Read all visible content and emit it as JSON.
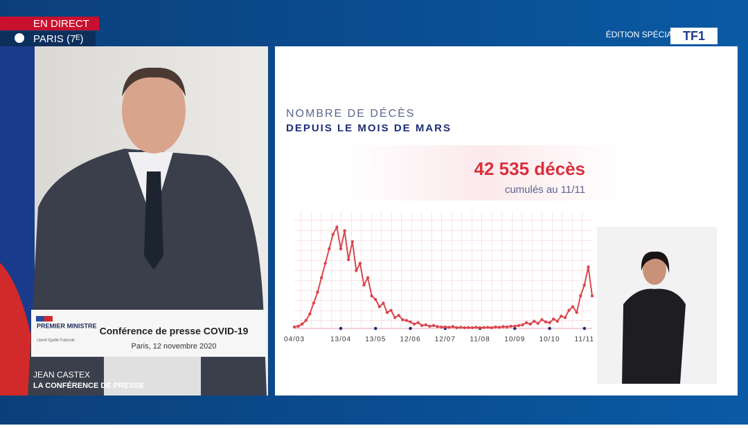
{
  "broadcast": {
    "live": "EN DIRECT",
    "location": "PARIS (7ᴱ)",
    "edition": "ÉDITION SPÉCIALE",
    "channel": "TF1",
    "lectern_org": "PREMIER MINISTRE",
    "lectern_motto": "Liberté Égalité Fraternité",
    "lectern_title": "Conférence de presse COVID-19",
    "lectern_date": "Paris, 12 novembre 2020",
    "speaker": "JEAN CASTEX",
    "program": "LA CONFÉRENCE DE PRESSE"
  },
  "chart_data": {
    "type": "line",
    "title": "NOMBRE DE DÉCÈS",
    "subtitle": "DEPUIS LE MOIS DE MARS",
    "annotations": [
      "42 535 décès",
      "cumulés au 11/11"
    ],
    "color": "#d9474f",
    "categories": [
      "04/03",
      null,
      null,
      null,
      null,
      null,
      null,
      null,
      null,
      null,
      null,
      null,
      "13/04",
      null,
      null,
      null,
      null,
      null,
      null,
      null,
      null,
      "13/05",
      null,
      null,
      null,
      null,
      null,
      null,
      null,
      null,
      "12/06",
      null,
      null,
      null,
      null,
      null,
      null,
      null,
      null,
      "12/07",
      null,
      null,
      null,
      null,
      null,
      null,
      null,
      null,
      "11/08",
      null,
      null,
      null,
      null,
      null,
      null,
      null,
      null,
      "10/09",
      null,
      null,
      null,
      null,
      null,
      null,
      null,
      null,
      "10/10",
      null,
      null,
      null,
      null,
      null,
      null,
      null,
      null,
      "11/11",
      null,
      null
    ],
    "values": [
      20,
      30,
      60,
      110,
      200,
      350,
      500,
      700,
      900,
      1100,
      1300,
      1400,
      1100,
      1350,
      950,
      1200,
      800,
      900,
      600,
      700,
      450,
      400,
      300,
      350,
      220,
      250,
      150,
      180,
      120,
      110,
      90,
      60,
      80,
      40,
      50,
      30,
      40,
      25,
      20,
      20,
      15,
      25,
      10,
      15,
      10,
      12,
      10,
      15,
      10,
      12,
      15,
      10,
      20,
      15,
      25,
      20,
      30,
      30,
      40,
      50,
      80,
      60,
      100,
      70,
      120,
      90,
      80,
      130,
      100,
      170,
      150,
      250,
      300,
      220,
      450,
      600,
      850,
      450
    ],
    "ylim": [
      0,
      1500
    ]
  }
}
